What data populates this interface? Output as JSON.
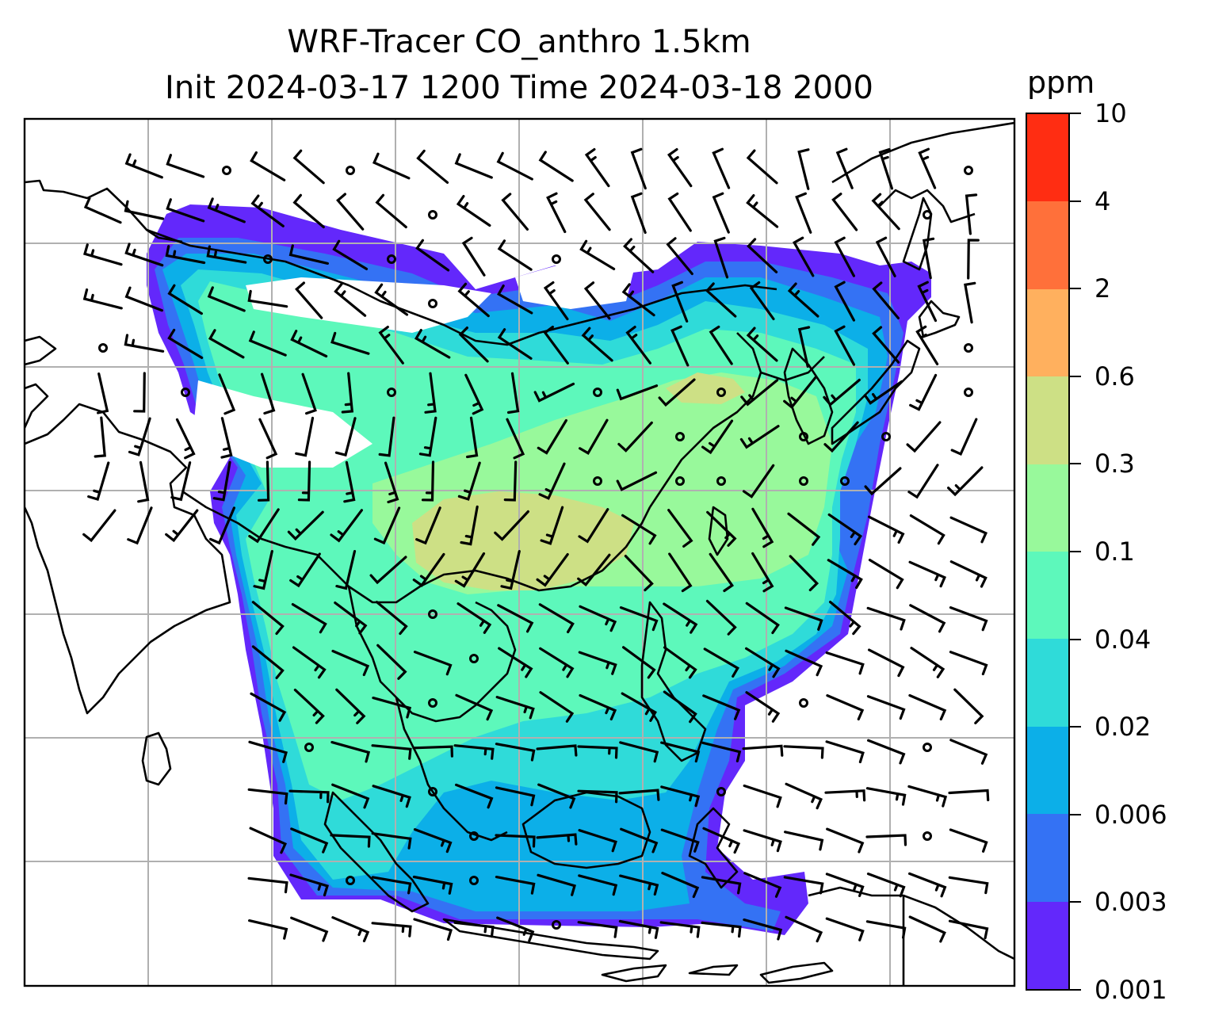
{
  "map": {
    "title_line1": "WRF-Tracer CO_anthro 1.5km",
    "title_line2": "Init 2024-03-17 1200 Time 2024-03-18 2000",
    "gridline_color": "#b0b0b0",
    "coastline_color": "#000000"
  },
  "colorbar": {
    "unit": "ppm",
    "levels": [
      "10",
      "4",
      "2",
      "0.6",
      "0.3",
      "0.1",
      "0.04",
      "0.02",
      "0.006",
      "0.003",
      "0.001"
    ],
    "colors": [
      "#ff2d12",
      "#ff703a",
      "#ffb05e",
      "#cde085",
      "#98f99b",
      "#5df8bb",
      "#2fdbd9",
      "#0cafe8",
      "#3472f4",
      "#6328fb"
    ]
  }
}
